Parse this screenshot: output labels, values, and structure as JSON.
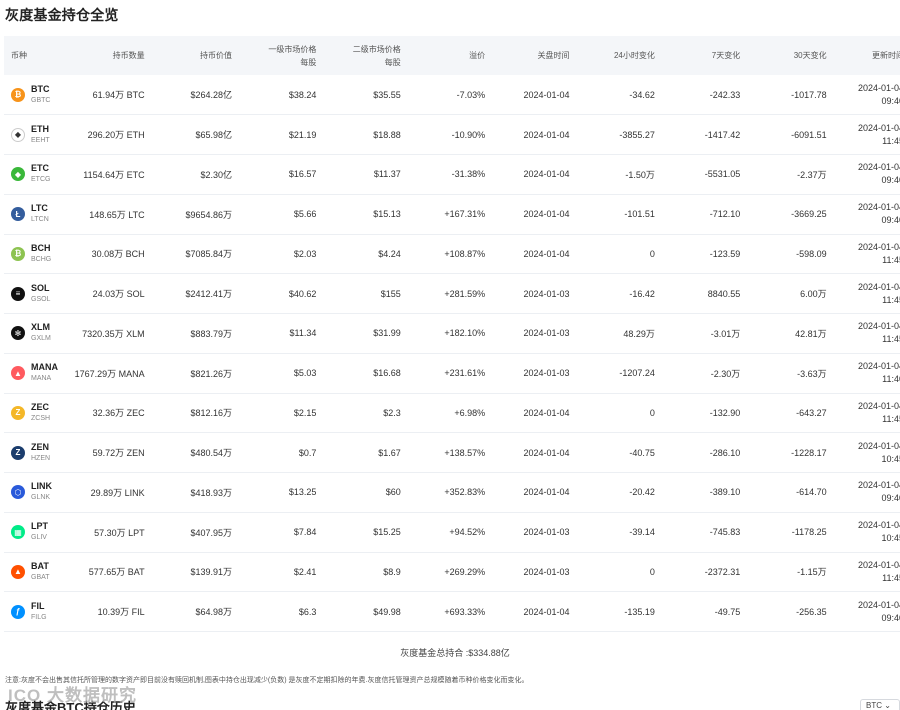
{
  "page_title": "灰度基金持仓全览",
  "columns": {
    "coin": "币种",
    "amount": "持币数量",
    "value": "持币价值",
    "primary_price_1": "一级市场价格",
    "primary_price_2": "每股",
    "secondary_price_1": "二级市场价格",
    "secondary_price_2": "每股",
    "premium": "溢价",
    "close_date": "关盘时间",
    "change_24h": "24小时变化",
    "change_7d": "7天变化",
    "change_30d": "30天变化",
    "updated": "更新时间"
  },
  "rows": [
    {
      "symbol": "BTC",
      "trust": "GBTC",
      "icon": "btc-icon",
      "color": "#f7931a",
      "glyph": "₿",
      "amount": "61.94万 BTC",
      "value": "$264.28亿",
      "primary": "$38.24",
      "secondary": "$35.55",
      "premium": "-7.03%",
      "premium_dir": "neg",
      "close": "2024-01-04",
      "c24": "-34.62",
      "c24_dir": "neg",
      "c7": "-242.33",
      "c7_dir": "neg",
      "c30": "-1017.78",
      "c30_dir": "neg",
      "upd_date": "2024-01-04",
      "upd_time": "09:40"
    },
    {
      "symbol": "ETH",
      "trust": "EEHT",
      "icon": "eth-icon",
      "color": "#ffffff",
      "glyph": "◆",
      "amount": "296.20万 ETH",
      "value": "$65.98亿",
      "primary": "$21.19",
      "secondary": "$18.88",
      "premium": "-10.90%",
      "premium_dir": "neg",
      "close": "2024-01-04",
      "c24": "-3855.27",
      "c24_dir": "neg",
      "c7": "-1417.42",
      "c7_dir": "neg",
      "c30": "-6091.51",
      "c30_dir": "neg",
      "upd_date": "2024-01-04",
      "upd_time": "11:45"
    },
    {
      "symbol": "ETC",
      "trust": "ETCG",
      "icon": "etc-icon",
      "color": "#3ab83a",
      "glyph": "◆",
      "amount": "1154.64万 ETC",
      "value": "$2.30亿",
      "primary": "$16.57",
      "secondary": "$11.37",
      "premium": "-31.38%",
      "premium_dir": "neg",
      "close": "2024-01-04",
      "c24": "-1.50万",
      "c24_dir": "neg",
      "c7": "-5531.05",
      "c7_dir": "neg",
      "c30": "-2.37万",
      "c30_dir": "neg",
      "upd_date": "2024-01-04",
      "upd_time": "09:40"
    },
    {
      "symbol": "LTC",
      "trust": "LTCN",
      "icon": "ltc-icon",
      "color": "#345d9d",
      "glyph": "Ł",
      "amount": "148.65万 LTC",
      "value": "$9654.86万",
      "primary": "$5.66",
      "secondary": "$15.13",
      "premium": "+167.31%",
      "premium_dir": "pos",
      "close": "2024-01-04",
      "c24": "-101.51",
      "c24_dir": "neg",
      "c7": "-712.10",
      "c7_dir": "neg",
      "c30": "-3669.25",
      "c30_dir": "neg",
      "upd_date": "2024-01-04",
      "upd_time": "09:40"
    },
    {
      "symbol": "BCH",
      "trust": "BCHG",
      "icon": "bch-icon",
      "color": "#8dc351",
      "glyph": "₿",
      "amount": "30.08万 BCH",
      "value": "$7085.84万",
      "primary": "$2.03",
      "secondary": "$4.24",
      "premium": "+108.87%",
      "premium_dir": "pos",
      "close": "2024-01-04",
      "c24": "0",
      "c24_dir": "neu",
      "c7": "-123.59",
      "c7_dir": "neg",
      "c30": "-598.09",
      "c30_dir": "neg",
      "upd_date": "2024-01-04",
      "upd_time": "11:45"
    },
    {
      "symbol": "SOL",
      "trust": "GSOL",
      "icon": "sol-icon",
      "color": "#111111",
      "glyph": "≡",
      "amount": "24.03万 SOL",
      "value": "$2412.41万",
      "primary": "$40.62",
      "secondary": "$155",
      "premium": "+281.59%",
      "premium_dir": "pos",
      "close": "2024-01-03",
      "c24": "-16.42",
      "c24_dir": "neg",
      "c7": "8840.55",
      "c7_dir": "pos",
      "c30": "6.00万",
      "c30_dir": "pos",
      "upd_date": "2024-01-04",
      "upd_time": "11:45"
    },
    {
      "symbol": "XLM",
      "trust": "GXLM",
      "icon": "xlm-icon",
      "color": "#111111",
      "glyph": "✻",
      "amount": "7320.35万 XLM",
      "value": "$883.79万",
      "primary": "$11.34",
      "secondary": "$31.99",
      "premium": "+182.10%",
      "premium_dir": "pos",
      "close": "2024-01-03",
      "c24": "48.29万",
      "c24_dir": "pos",
      "c7": "-3.01万",
      "c7_dir": "neg",
      "c30": "42.81万",
      "c30_dir": "pos",
      "upd_date": "2024-01-04",
      "upd_time": "11:45"
    },
    {
      "symbol": "MANA",
      "trust": "MANA",
      "icon": "mana-icon",
      "color": "#ff5a5f",
      "glyph": "▲",
      "amount": "1767.29万 MANA",
      "value": "$821.26万",
      "primary": "$5.03",
      "secondary": "$16.68",
      "premium": "+231.61%",
      "premium_dir": "pos",
      "close": "2024-01-03",
      "c24": "-1207.24",
      "c24_dir": "neg",
      "c7": "-2.30万",
      "c7_dir": "neg",
      "c30": "-3.63万",
      "c30_dir": "neg",
      "upd_date": "2024-01-04",
      "upd_time": "11:40"
    },
    {
      "symbol": "ZEC",
      "trust": "ZCSH",
      "icon": "zec-icon",
      "color": "#f4b728",
      "glyph": "Z",
      "amount": "32.36万 ZEC",
      "value": "$812.16万",
      "primary": "$2.15",
      "secondary": "$2.3",
      "premium": "+6.98%",
      "premium_dir": "pos",
      "close": "2024-01-04",
      "c24": "0",
      "c24_dir": "neu",
      "c7": "-132.90",
      "c7_dir": "neg",
      "c30": "-643.27",
      "c30_dir": "neg",
      "upd_date": "2024-01-04",
      "upd_time": "11:45"
    },
    {
      "symbol": "ZEN",
      "trust": "HZEN",
      "icon": "zen-icon",
      "color": "#1b3d6d",
      "glyph": "Z",
      "amount": "59.72万 ZEN",
      "value": "$480.54万",
      "primary": "$0.7",
      "secondary": "$1.67",
      "premium": "+138.57%",
      "premium_dir": "pos",
      "close": "2024-01-04",
      "c24": "-40.75",
      "c24_dir": "neg",
      "c7": "-286.10",
      "c7_dir": "neg",
      "c30": "-1228.17",
      "c30_dir": "neg",
      "upd_date": "2024-01-04",
      "upd_time": "10:45"
    },
    {
      "symbol": "LINK",
      "trust": "GLNK",
      "icon": "link-icon",
      "color": "#2a5ada",
      "glyph": "⬡",
      "amount": "29.89万 LINK",
      "value": "$418.93万",
      "primary": "$13.25",
      "secondary": "$60",
      "premium": "+352.83%",
      "premium_dir": "pos",
      "close": "2024-01-04",
      "c24": "-20.42",
      "c24_dir": "neg",
      "c7": "-389.10",
      "c7_dir": "neg",
      "c30": "-614.70",
      "c30_dir": "neg",
      "upd_date": "2024-01-04",
      "upd_time": "09:40"
    },
    {
      "symbol": "LPT",
      "trust": "GLIV",
      "icon": "lpt-icon",
      "color": "#00eb88",
      "glyph": "▦",
      "amount": "57.30万 LPT",
      "value": "$407.95万",
      "primary": "$7.84",
      "secondary": "$15.25",
      "premium": "+94.52%",
      "premium_dir": "pos",
      "close": "2024-01-03",
      "c24": "-39.14",
      "c24_dir": "neg",
      "c7": "-745.83",
      "c7_dir": "neg",
      "c30": "-1178.25",
      "c30_dir": "neg",
      "upd_date": "2024-01-04",
      "upd_time": "10:45"
    },
    {
      "symbol": "BAT",
      "trust": "GBAT",
      "icon": "bat-icon",
      "color": "#ff5000",
      "glyph": "▲",
      "amount": "577.65万 BAT",
      "value": "$139.91万",
      "primary": "$2.41",
      "secondary": "$8.9",
      "premium": "+269.29%",
      "premium_dir": "pos",
      "close": "2024-01-03",
      "c24": "0",
      "c24_dir": "neu",
      "c7": "-2372.31",
      "c7_dir": "neg",
      "c30": "-1.15万",
      "c30_dir": "neg",
      "upd_date": "2024-01-04",
      "upd_time": "11:45"
    },
    {
      "symbol": "FIL",
      "trust": "FILG",
      "icon": "fil-icon",
      "color": "#0090ff",
      "glyph": "ƒ",
      "amount": "10.39万 FIL",
      "value": "$64.98万",
      "primary": "$6.3",
      "secondary": "$49.98",
      "premium": "+693.33%",
      "premium_dir": "pos",
      "close": "2024-01-04",
      "c24": "-135.19",
      "c24_dir": "neg",
      "c7": "-49.75",
      "c7_dir": "neg",
      "c30": "-256.35",
      "c30_dir": "neg",
      "upd_date": "2024-01-04",
      "upd_time": "09:40"
    }
  ],
  "total": "灰度基金总持合 :$334.88亿",
  "note": "注意:灰度不会出售其信托所管理的数字资产即目前没有赎回机制,图表中持仓出现减少(负数) 是灰度不定期扣除的年费.灰度信托管理资产总规模随着币种价格变化而变化。",
  "watermark": "ICO 大数据研究",
  "history_title": "灰度基金BTC持仓历史",
  "history_select": "BTC"
}
